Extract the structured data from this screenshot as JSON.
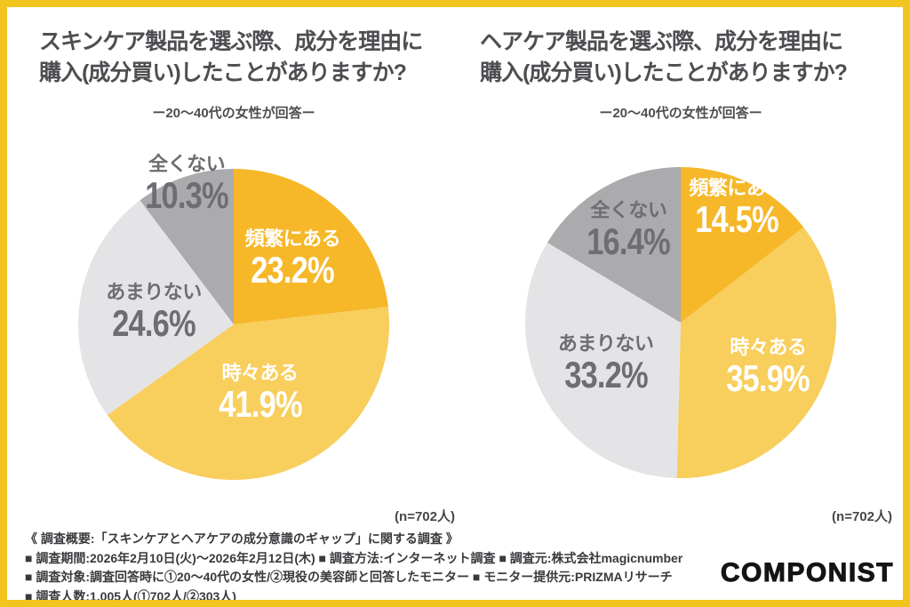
{
  "page": {
    "background": "#FFFFFF",
    "frame_color": "#F2C41E"
  },
  "chart_data": [
    {
      "type": "pie",
      "title_lines": [
        "スキンケア製品を選ぶ際、成分を理由に",
        "購入(成分買い)したことがありますか?"
      ],
      "subtitle": "ー20〜40代の女性が回答ー",
      "n_note": "(n=702人)",
      "categories": [
        "頻繁にある",
        "時々ある",
        "あまりない",
        "全くない"
      ],
      "values": [
        23.2,
        41.9,
        24.6,
        10.3
      ],
      "unit": "%",
      "start_angle_deg": 0,
      "direction": "clockwise",
      "legend_position": "labels-inside-slices",
      "colors": [
        "#F6B829",
        "#F8CE5C",
        "#E4E4E6",
        "#ABABAD"
      ],
      "label_text_colors": [
        "#FFFFFF",
        "#FFFFFF",
        "#6D6D72",
        "#6D6D72"
      ],
      "label_radius_frac": [
        0.57,
        0.47,
        0.52,
        0.95
      ]
    },
    {
      "type": "pie",
      "title_lines": [
        "ヘアケア製品を選ぶ際、成分を理由に",
        "購入(成分買い)したことがありますか?"
      ],
      "subtitle": "ー20〜40代の女性が回答ー",
      "n_note": "(n=702人)",
      "categories": [
        "頻繁にある",
        "時々ある",
        "あまりない",
        "全くない"
      ],
      "values": [
        14.5,
        35.9,
        33.2,
        16.4
      ],
      "unit": "%",
      "start_angle_deg": 0,
      "direction": "clockwise",
      "legend_position": "labels-inside-slices",
      "colors": [
        "#F6B829",
        "#F8CE5C",
        "#E4E4E6",
        "#ABABAD"
      ],
      "label_text_colors": [
        "#FFFFFF",
        "#FFFFFF",
        "#6D6D72",
        "#6D6D72"
      ],
      "label_radius_frac": [
        0.82,
        0.63,
        0.55,
        0.68
      ]
    }
  ],
  "footer": {
    "heading": "《 調査概要:「スキンケアとヘアケアの成分意識のギャップ」に関する調査 》",
    "lines": [
      "■ 調査期間:2026年2月10日(火)〜2026年2月12日(木) ■ 調査方法:インターネット調査 ■ 調査元:株式会社magicnumber",
      "■ 調査対象:調査回答時に①20〜40代の女性/②現役の美容師と回答したモニター ■ モニター提供元:PRIZMAリサーチ",
      "■ 調査人数:1,005人(①702人/②303人)"
    ]
  },
  "logo": {
    "text": "COMPONIST"
  }
}
